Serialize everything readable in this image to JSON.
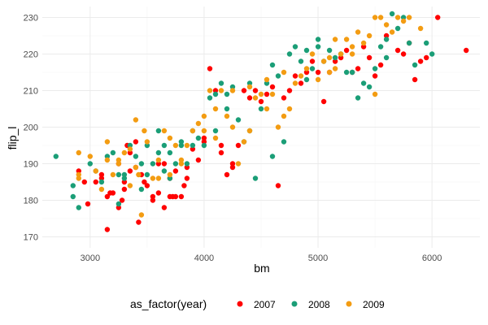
{
  "chart_data": {
    "type": "scatter",
    "xlabel": "bm",
    "ylabel": "flip_l",
    "xlim": [
      2580,
      6420
    ],
    "ylim": [
      167,
      233
    ],
    "x_ticks": [
      3000,
      4000,
      5000,
      6000
    ],
    "y_ticks": [
      170,
      180,
      190,
      200,
      210,
      220,
      230
    ],
    "grid": true,
    "legend": {
      "title": "as_factor(year)",
      "position": "bottom"
    },
    "series": [
      {
        "name": "2007",
        "color": "#ff0000",
        "points": [
          [
            2900,
            188
          ],
          [
            2950,
            185
          ],
          [
            2980,
            179
          ],
          [
            3050,
            185
          ],
          [
            3100,
            186
          ],
          [
            3150,
            172
          ],
          [
            3175,
            182
          ],
          [
            3200,
            182
          ],
          [
            3250,
            178
          ],
          [
            3280,
            180
          ],
          [
            3300,
            185
          ],
          [
            3325,
            195
          ],
          [
            3350,
            193
          ],
          [
            3400,
            196
          ],
          [
            3425,
            174
          ],
          [
            3450,
            187
          ],
          [
            3475,
            185
          ],
          [
            3500,
            184
          ],
          [
            3550,
            180
          ],
          [
            3600,
            190
          ],
          [
            3650,
            190
          ],
          [
            3700,
            181
          ],
          [
            3725,
            181
          ],
          [
            3750,
            181
          ],
          [
            3800,
            181
          ],
          [
            3825,
            184
          ],
          [
            3850,
            189
          ],
          [
            3900,
            194
          ],
          [
            3950,
            191
          ],
          [
            4000,
            197
          ],
          [
            4050,
            216
          ],
          [
            4100,
            210
          ],
          [
            4150,
            195
          ],
          [
            4200,
            187
          ],
          [
            4250,
            190
          ],
          [
            4300,
            195
          ],
          [
            4350,
            210
          ],
          [
            4400,
            208
          ],
          [
            4450,
            210
          ],
          [
            4500,
            207
          ],
          [
            4550,
            209
          ],
          [
            4600,
            211
          ],
          [
            4650,
            184
          ],
          [
            4700,
            208
          ],
          [
            4750,
            210
          ],
          [
            4800,
            214
          ],
          [
            4850,
            212
          ],
          [
            4900,
            215
          ],
          [
            4950,
            218
          ],
          [
            5000,
            215
          ],
          [
            5050,
            207
          ],
          [
            5100,
            215
          ],
          [
            5150,
            218
          ],
          [
            5200,
            219
          ],
          [
            5250,
            221
          ],
          [
            5300,
            215
          ],
          [
            5350,
            216
          ],
          [
            5400,
            222
          ],
          [
            5450,
            219
          ],
          [
            5500,
            214
          ],
          [
            5550,
            217
          ],
          [
            5600,
            225
          ],
          [
            5700,
            221
          ],
          [
            5750,
            220
          ],
          [
            5800,
            223
          ],
          [
            5850,
            213
          ],
          [
            5900,
            218
          ],
          [
            5950,
            219
          ],
          [
            6050,
            230
          ],
          [
            6300,
            221
          ],
          [
            3550,
            181
          ],
          [
            3600,
            182
          ],
          [
            3650,
            178
          ],
          [
            3850,
            186
          ],
          [
            4250,
            189
          ],
          [
            3300,
            183
          ],
          [
            3350,
            188
          ],
          [
            4000,
            196
          ],
          [
            4150,
            193
          ],
          [
            3750,
            188
          ],
          [
            3700,
            186
          ],
          [
            3400,
            189
          ],
          [
            3250,
            190
          ],
          [
            3100,
            187
          ],
          [
            3150,
            181
          ]
        ]
      },
      {
        "name": "2008",
        "color": "#1b9e77",
        "points": [
          [
            2700,
            192
          ],
          [
            2850,
            184
          ],
          [
            2850,
            181
          ],
          [
            2900,
            178
          ],
          [
            3000,
            190
          ],
          [
            3050,
            188
          ],
          [
            3100,
            185
          ],
          [
            3150,
            192
          ],
          [
            3200,
            193
          ],
          [
            3250,
            187
          ],
          [
            3300,
            186
          ],
          [
            3350,
            195
          ],
          [
            3400,
            192
          ],
          [
            3450,
            190
          ],
          [
            3500,
            195
          ],
          [
            3550,
            190
          ],
          [
            3600,
            193
          ],
          [
            3650,
            188
          ],
          [
            3700,
            193
          ],
          [
            3750,
            190
          ],
          [
            3800,
            195
          ],
          [
            3850,
            190
          ],
          [
            3900,
            199
          ],
          [
            3950,
            197
          ],
          [
            4000,
            195
          ],
          [
            4050,
            208
          ],
          [
            4100,
            209
          ],
          [
            4150,
            212
          ],
          [
            4200,
            209
          ],
          [
            4250,
            211
          ],
          [
            4300,
            202
          ],
          [
            4350,
            196
          ],
          [
            4400,
            199
          ],
          [
            4450,
            186
          ],
          [
            4500,
            205
          ],
          [
            4550,
            212
          ],
          [
            4600,
            217
          ],
          [
            4650,
            214
          ],
          [
            4700,
            196
          ],
          [
            4750,
            220
          ],
          [
            4800,
            222
          ],
          [
            4850,
            218
          ],
          [
            4900,
            221
          ],
          [
            4950,
            216
          ],
          [
            5000,
            222
          ],
          [
            5050,
            218
          ],
          [
            5100,
            221
          ],
          [
            5150,
            219
          ],
          [
            5200,
            220
          ],
          [
            5250,
            215
          ],
          [
            5300,
            215
          ],
          [
            5350,
            208
          ],
          [
            5400,
            212
          ],
          [
            5450,
            211
          ],
          [
            5500,
            216
          ],
          [
            5550,
            222
          ],
          [
            5600,
            224
          ],
          [
            5650,
            231
          ],
          [
            5700,
            227
          ],
          [
            5750,
            230
          ],
          [
            5800,
            223
          ],
          [
            5850,
            217
          ],
          [
            5950,
            223
          ],
          [
            6000,
            220
          ],
          [
            3450,
            183
          ],
          [
            3600,
            199
          ],
          [
            3700,
            186
          ],
          [
            3800,
            196
          ],
          [
            4100,
            199
          ],
          [
            3500,
            187
          ],
          [
            3300,
            187
          ],
          [
            3900,
            195
          ],
          [
            4200,
            205
          ],
          [
            3650,
            195
          ],
          [
            3250,
            179
          ],
          [
            4600,
            192
          ],
          [
            4400,
            212
          ],
          [
            5000,
            224
          ],
          [
            5600,
            219
          ],
          [
            4900,
            213
          ]
        ]
      },
      {
        "name": "2009",
        "color": "#f39c12",
        "points": [
          [
            2900,
            193
          ],
          [
            2900,
            187
          ],
          [
            3000,
            192
          ],
          [
            3050,
            188
          ],
          [
            3100,
            183
          ],
          [
            3150,
            191
          ],
          [
            3200,
            187
          ],
          [
            3250,
            190
          ],
          [
            3300,
            193
          ],
          [
            3350,
            184
          ],
          [
            3400,
            202
          ],
          [
            3425,
            187
          ],
          [
            3450,
            176
          ],
          [
            3475,
            199
          ],
          [
            3500,
            196
          ],
          [
            3550,
            186
          ],
          [
            3600,
            191
          ],
          [
            3650,
            199
          ],
          [
            3700,
            187
          ],
          [
            3750,
            195
          ],
          [
            3800,
            191
          ],
          [
            3850,
            195
          ],
          [
            3900,
            199
          ],
          [
            3950,
            201
          ],
          [
            4000,
            203
          ],
          [
            4050,
            210
          ],
          [
            4100,
            197
          ],
          [
            4150,
            210
          ],
          [
            4200,
            203
          ],
          [
            4250,
            200
          ],
          [
            4300,
            190
          ],
          [
            4350,
            196
          ],
          [
            4400,
            199
          ],
          [
            4450,
            208
          ],
          [
            4500,
            209
          ],
          [
            4550,
            205
          ],
          [
            4600,
            209
          ],
          [
            4650,
            200
          ],
          [
            4700,
            203
          ],
          [
            4750,
            205
          ],
          [
            4800,
            212
          ],
          [
            4850,
            214
          ],
          [
            4900,
            216
          ],
          [
            4950,
            220
          ],
          [
            5000,
            213
          ],
          [
            5050,
            218
          ],
          [
            5100,
            219
          ],
          [
            5150,
            216
          ],
          [
            5200,
            220
          ],
          [
            5250,
            224
          ],
          [
            5300,
            222
          ],
          [
            5350,
            226
          ],
          [
            5400,
            223
          ],
          [
            5450,
            225
          ],
          [
            5500,
            230
          ],
          [
            5550,
            230
          ],
          [
            5600,
            228
          ],
          [
            5650,
            226
          ],
          [
            5700,
            230
          ],
          [
            5750,
            229
          ],
          [
            5800,
            230
          ],
          [
            5900,
            227
          ],
          [
            3350,
            194
          ],
          [
            3600,
            186
          ],
          [
            3400,
            189
          ],
          [
            3700,
            197
          ],
          [
            3150,
            196
          ],
          [
            4100,
            205
          ],
          [
            4250,
            210
          ],
          [
            4550,
            213
          ],
          [
            4700,
            215
          ],
          [
            5100,
            215
          ],
          [
            5300,
            220
          ],
          [
            5500,
            209
          ],
          [
            3250,
            191
          ],
          [
            2900,
            186
          ],
          [
            3800,
            190
          ],
          [
            4000,
            199
          ],
          [
            4400,
            211
          ],
          [
            5150,
            224
          ]
        ]
      }
    ]
  }
}
